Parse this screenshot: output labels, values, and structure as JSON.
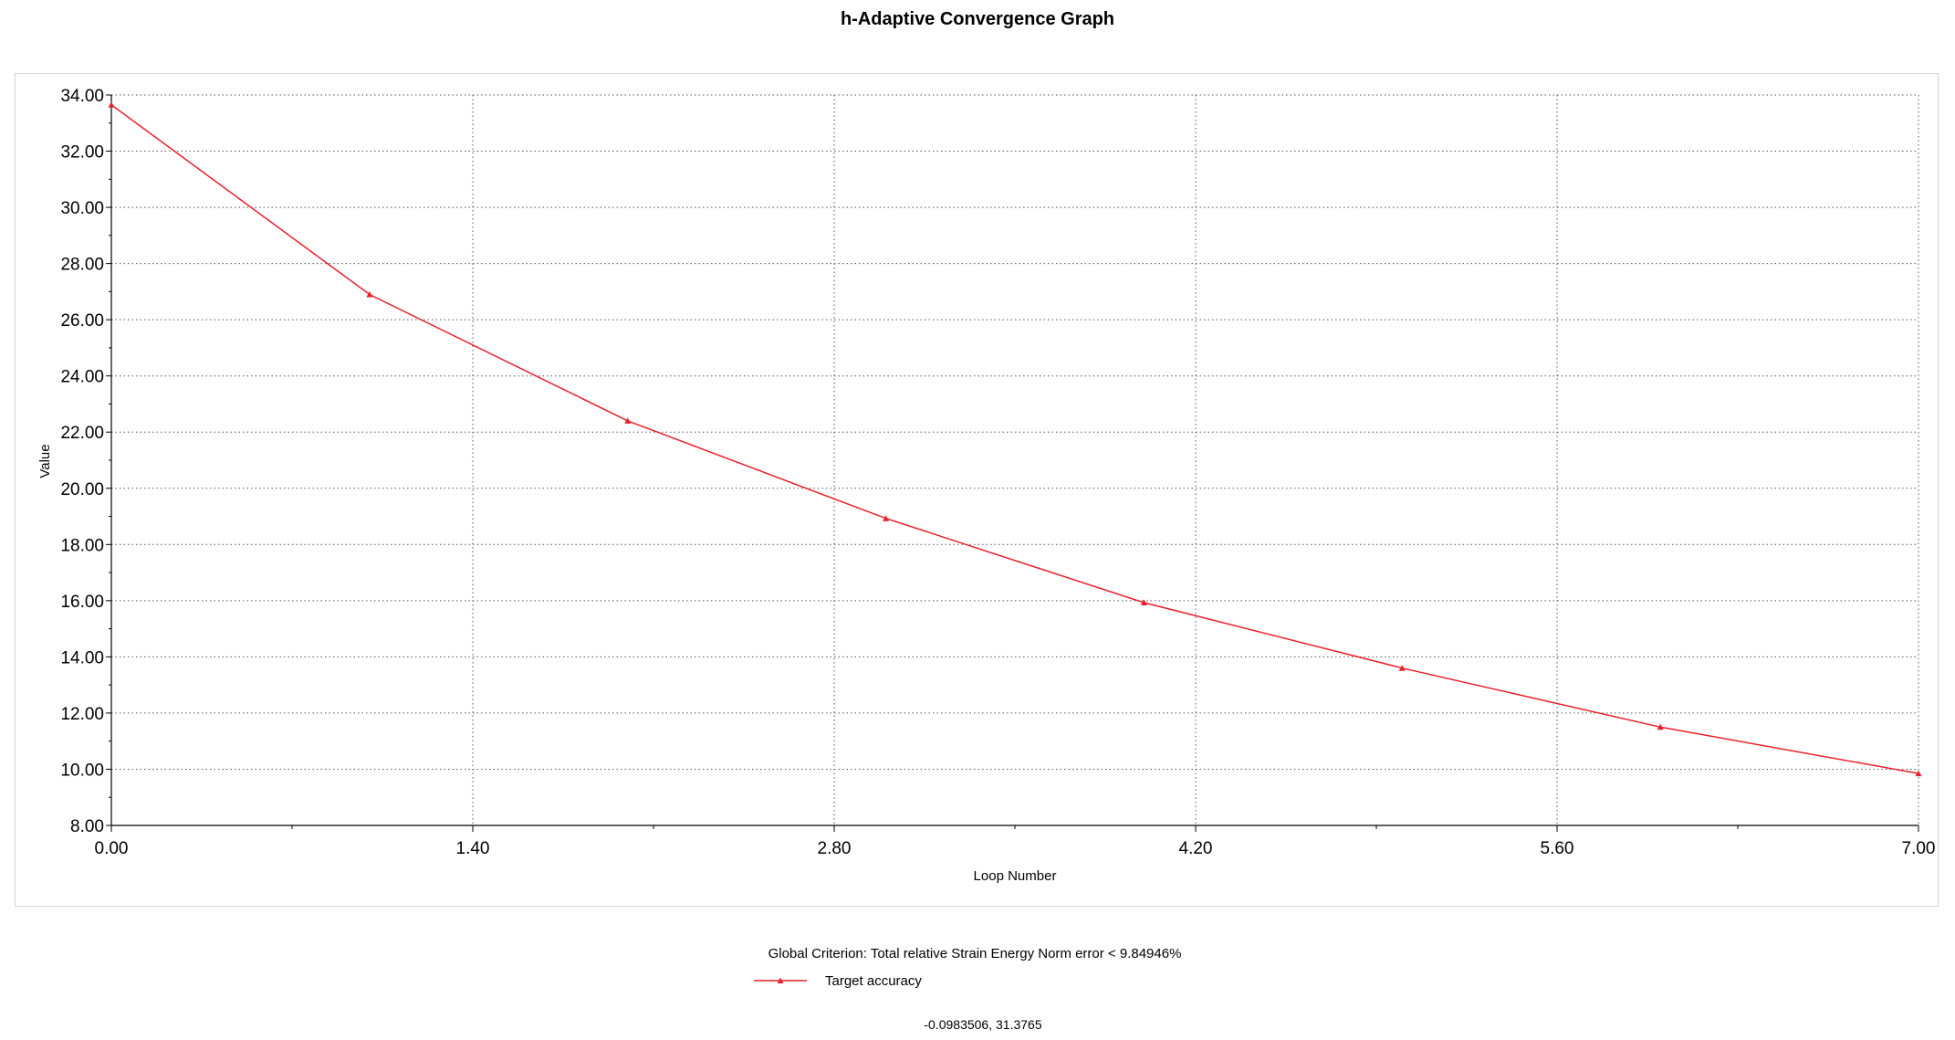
{
  "chart_data": {
    "type": "line",
    "title": "h-Adaptive Convergence Graph",
    "xlabel": "Loop Number",
    "ylabel": "Value",
    "xlim": [
      0,
      7
    ],
    "ylim": [
      8,
      34
    ],
    "x_ticks": [
      "0.00",
      "1.40",
      "2.80",
      "4.20",
      "5.60",
      "7.00"
    ],
    "y_ticks": [
      "8.00",
      "10.00",
      "12.00",
      "14.00",
      "16.00",
      "18.00",
      "20.00",
      "22.00",
      "24.00",
      "26.00",
      "28.00",
      "30.00",
      "32.00",
      "34.00"
    ],
    "grid": true,
    "series": [
      {
        "name": "Target accuracy",
        "color": "#e8202a",
        "x": [
          0,
          1,
          2,
          3,
          4,
          5,
          6,
          7
        ],
        "y": [
          33.65,
          26.9,
          22.4,
          18.93,
          15.93,
          13.6,
          11.5,
          9.85
        ]
      }
    ],
    "criterion": "Global Criterion: Total relative Strain Energy Norm error < 9.84946%",
    "legend_placement": "bottom-center",
    "cursor_readout": "-0.0983506, 31.3765"
  }
}
